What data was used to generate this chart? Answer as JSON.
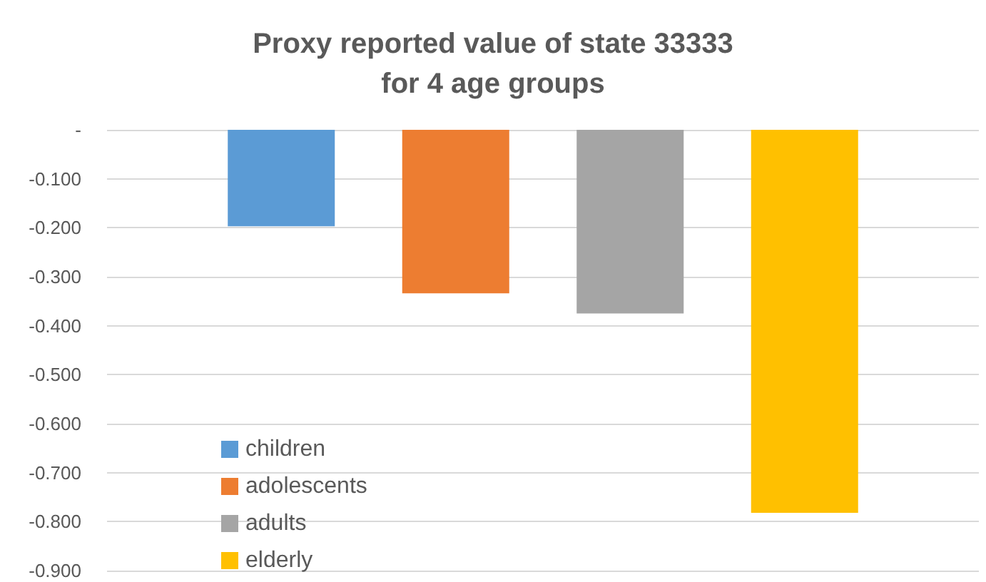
{
  "chart_data": {
    "type": "bar",
    "title": "Proxy reported value of state 33333\nfor 4 age groups",
    "categories": [
      null
    ],
    "series": [
      {
        "name": "children",
        "color": "#5b9bd5",
        "values": [
          -0.197
        ]
      },
      {
        "name": "adolescents",
        "color": "#ed7d31",
        "values": [
          -0.334
        ]
      },
      {
        "name": "adults",
        "color": "#a5a5a5",
        "values": [
          -0.375
        ]
      },
      {
        "name": "elderly",
        "color": "#ffc000",
        "values": [
          -0.782
        ]
      }
    ],
    "ylim": [
      -0.9,
      0
    ],
    "yticks": [
      {
        "value": 0,
        "label": "-"
      },
      {
        "value": -0.1,
        "label": "-0.100"
      },
      {
        "value": -0.2,
        "label": "-0.200"
      },
      {
        "value": -0.3,
        "label": "-0.300"
      },
      {
        "value": -0.4,
        "label": "-0.400"
      },
      {
        "value": -0.5,
        "label": "-0.500"
      },
      {
        "value": -0.6,
        "label": "-0.600"
      },
      {
        "value": -0.7,
        "label": "-0.700"
      },
      {
        "value": -0.8,
        "label": "-0.800"
      },
      {
        "value": -0.9,
        "label": "-0.900"
      }
    ],
    "grid": "y",
    "legend": "bottom left"
  }
}
